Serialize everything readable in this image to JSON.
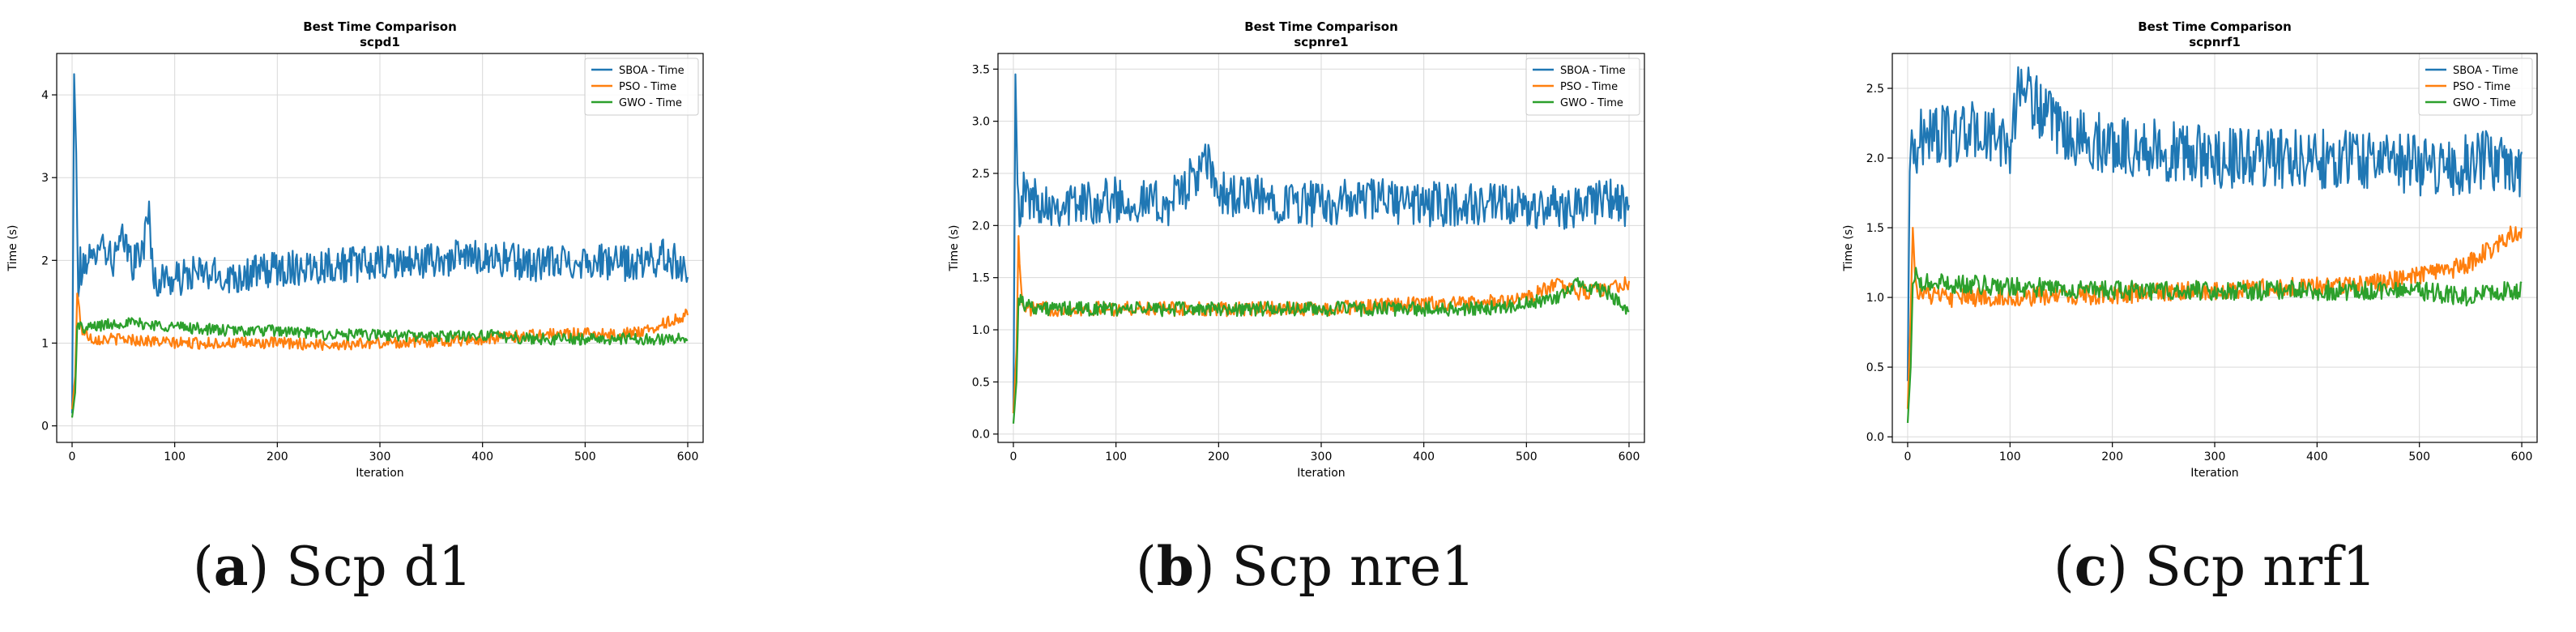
{
  "colors": {
    "sboa": "#1f77b4",
    "pso": "#ff7f0e",
    "gwo": "#2ca02c",
    "grid": "#d9d9d9",
    "axis": "#000000"
  },
  "captions": [
    {
      "letter": "a",
      "text": "Scp d1"
    },
    {
      "letter": "b",
      "text": "Scp nre1"
    },
    {
      "letter": "c",
      "text": "Scp nrf1"
    }
  ],
  "chart_data": [
    {
      "type": "line",
      "title": "Best Time Comparison",
      "subtitle": "scpd1",
      "xlabel": "Iteration",
      "ylabel": "Time (s)",
      "xlim": [
        -15,
        615
      ],
      "ylim": [
        -0.2,
        4.5
      ],
      "xticks": [
        0,
        100,
        200,
        300,
        400,
        500,
        600
      ],
      "yticks": [
        0,
        1,
        2,
        3,
        4
      ],
      "ytick_labels": [
        "0",
        "1",
        "2",
        "3",
        "4"
      ],
      "grid": true,
      "legend_position": "top-right",
      "series": [
        {
          "name": "SBOA - Time",
          "x": [
            0,
            2,
            4,
            6,
            8,
            10,
            15,
            20,
            25,
            30,
            40,
            50,
            60,
            70,
            75,
            80,
            90,
            100,
            120,
            150,
            180,
            200,
            250,
            300,
            350,
            400,
            450,
            500,
            550,
            580,
            600
          ],
          "y": [
            0.15,
            4.25,
            3.3,
            1.5,
            2.0,
            1.8,
            2.1,
            1.9,
            2.3,
            2.2,
            2.0,
            2.25,
            1.95,
            2.2,
            2.6,
            1.7,
            1.8,
            1.75,
            1.85,
            1.8,
            1.85,
            1.9,
            1.95,
            1.95,
            2.0,
            2.05,
            1.95,
            2.0,
            1.95,
            2.05,
            1.85
          ]
        },
        {
          "name": "PSO - Time",
          "x": [
            0,
            3,
            5,
            8,
            10,
            20,
            50,
            100,
            150,
            200,
            250,
            300,
            350,
            400,
            450,
            500,
            530,
            560,
            580,
            600
          ],
          "y": [
            0.2,
            0.6,
            1.6,
            1.3,
            1.15,
            1.05,
            1.05,
            1.0,
            1.0,
            1.0,
            0.98,
            1.0,
            1.02,
            1.05,
            1.1,
            1.12,
            1.1,
            1.15,
            1.25,
            1.35
          ]
        },
        {
          "name": "GWO - Time",
          "x": [
            0,
            3,
            5,
            8,
            10,
            20,
            50,
            100,
            150,
            200,
            250,
            300,
            350,
            400,
            450,
            500,
            550,
            600
          ],
          "y": [
            0.1,
            0.4,
            1.2,
            1.25,
            1.15,
            1.2,
            1.25,
            1.2,
            1.15,
            1.15,
            1.1,
            1.1,
            1.08,
            1.1,
            1.05,
            1.05,
            1.05,
            1.05
          ]
        }
      ]
    },
    {
      "type": "line",
      "title": "Best Time Comparison",
      "subtitle": "scpnre1",
      "xlabel": "Iteration",
      "ylabel": "Time (s)",
      "xlim": [
        -15,
        615
      ],
      "ylim": [
        -0.08,
        3.65
      ],
      "xticks": [
        0,
        100,
        200,
        300,
        400,
        500,
        600
      ],
      "yticks": [
        0,
        0.5,
        1,
        1.5,
        2,
        2.5,
        3,
        3.5
      ],
      "ytick_labels": [
        "0.0",
        "0.5",
        "1.0",
        "1.5",
        "2.0",
        "2.5",
        "3.0",
        "3.5"
      ],
      "grid": true,
      "legend_position": "top-right",
      "series": [
        {
          "name": "SBOA - Time",
          "x": [
            0,
            2,
            4,
            6,
            10,
            20,
            50,
            100,
            150,
            190,
            200,
            250,
            300,
            350,
            400,
            450,
            500,
            550,
            580,
            600
          ],
          "y": [
            0.2,
            3.45,
            2.4,
            2.2,
            2.3,
            2.25,
            2.2,
            2.25,
            2.2,
            2.6,
            2.3,
            2.25,
            2.2,
            2.25,
            2.2,
            2.2,
            2.15,
            2.2,
            2.25,
            2.15
          ]
        },
        {
          "name": "PSO - Time",
          "x": [
            0,
            3,
            5,
            8,
            10,
            30,
            100,
            200,
            300,
            400,
            450,
            500,
            530,
            550,
            580,
            600
          ],
          "y": [
            0.2,
            0.8,
            1.9,
            1.3,
            1.2,
            1.2,
            1.2,
            1.2,
            1.2,
            1.25,
            1.25,
            1.3,
            1.45,
            1.35,
            1.4,
            1.45
          ]
        },
        {
          "name": "GWO - Time",
          "x": [
            0,
            3,
            5,
            8,
            10,
            30,
            100,
            200,
            300,
            400,
            450,
            500,
            530,
            550,
            580,
            600
          ],
          "y": [
            0.1,
            0.5,
            1.3,
            1.3,
            1.25,
            1.2,
            1.2,
            1.2,
            1.2,
            1.2,
            1.2,
            1.25,
            1.3,
            1.45,
            1.35,
            1.15
          ]
        }
      ]
    },
    {
      "type": "line",
      "title": "Best Time Comparison",
      "subtitle": "scpnrf1",
      "xlabel": "Iteration",
      "ylabel": "Time (s)",
      "xlim": [
        -15,
        615
      ],
      "ylim": [
        -0.04,
        2.75
      ],
      "xticks": [
        0,
        100,
        200,
        300,
        400,
        500,
        600
      ],
      "yticks": [
        0,
        0.5,
        1,
        1.5,
        2,
        2.5
      ],
      "ytick_labels": [
        "0.0",
        "0.5",
        "1.0",
        "1.5",
        "2.0",
        "2.5"
      ],
      "grid": true,
      "legend_position": "top-right",
      "series": [
        {
          "name": "SBOA - Time",
          "x": [
            0,
            2,
            4,
            6,
            10,
            20,
            40,
            60,
            80,
            100,
            110,
            150,
            200,
            250,
            300,
            350,
            400,
            450,
            500,
            550,
            580,
            600
          ],
          "y": [
            0.4,
            1.9,
            2.2,
            2.0,
            2.1,
            2.2,
            2.15,
            2.2,
            2.15,
            2.1,
            2.55,
            2.15,
            2.1,
            2.05,
            2.0,
            2.0,
            2.0,
            2.0,
            1.95,
            1.95,
            2.0,
            1.9
          ]
        },
        {
          "name": "PSO - Time",
          "x": [
            0,
            3,
            5,
            8,
            10,
            30,
            100,
            200,
            300,
            400,
            450,
            500,
            530,
            550,
            570,
            590,
            600
          ],
          "y": [
            0.2,
            0.9,
            1.5,
            1.1,
            1.05,
            1.0,
            1.0,
            1.02,
            1.05,
            1.08,
            1.1,
            1.15,
            1.2,
            1.25,
            1.35,
            1.45,
            1.45
          ]
        },
        {
          "name": "GWO - Time",
          "x": [
            0,
            3,
            5,
            8,
            10,
            30,
            100,
            200,
            300,
            400,
            450,
            500,
            550,
            580,
            600
          ],
          "y": [
            0.1,
            0.5,
            1.1,
            1.15,
            1.1,
            1.1,
            1.08,
            1.05,
            1.05,
            1.05,
            1.05,
            1.05,
            1.0,
            1.05,
            1.05
          ]
        }
      ]
    }
  ]
}
